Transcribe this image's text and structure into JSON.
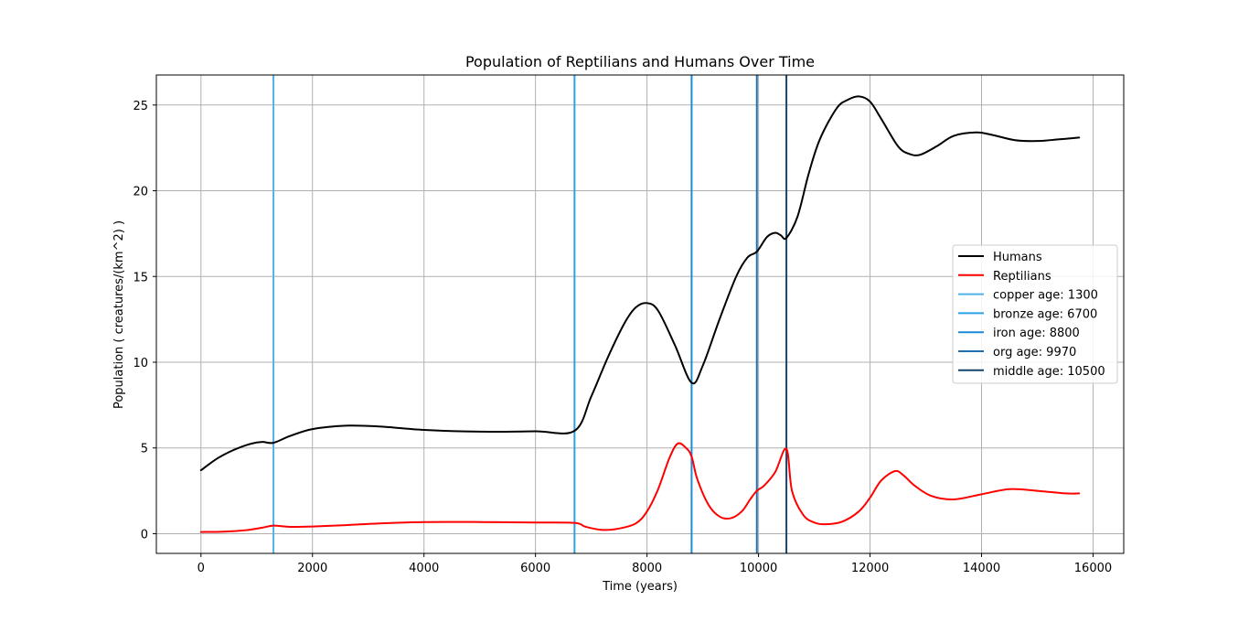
{
  "chart_data": {
    "type": "line",
    "title": "Population of Reptilians and Humans Over Time",
    "xlabel": "Time (years)",
    "ylabel": "Population ( creatures/(km^2) )",
    "xlim": [
      -800,
      16550
    ],
    "ylim": [
      -1.15,
      26.75
    ],
    "xticks": [
      0,
      2000,
      4000,
      6000,
      8000,
      10000,
      12000,
      14000,
      16000
    ],
    "yticks": [
      0,
      5,
      10,
      15,
      20,
      25
    ],
    "grid": true,
    "legend_position": "center-right",
    "series": [
      {
        "name": "Humans",
        "color": "#000000",
        "x": [
          0,
          300,
          600,
          900,
          1100,
          1300,
          1600,
          2000,
          2600,
          3200,
          4000,
          5000,
          6000,
          6700,
          7000,
          7300,
          7600,
          7800,
          8000,
          8200,
          8500,
          8800,
          9000,
          9300,
          9600,
          9800,
          9970,
          10150,
          10300,
          10400,
          10500,
          10700,
          10900,
          11100,
          11400,
          11600,
          11800,
          12000,
          12200,
          12500,
          12700,
          12900,
          13200,
          13500,
          13900,
          14200,
          14600,
          15000,
          15400,
          15750
        ],
        "y": [
          3.7,
          4.4,
          4.9,
          5.25,
          5.35,
          5.3,
          5.7,
          6.1,
          6.3,
          6.25,
          6.05,
          5.95,
          5.97,
          6.0,
          8.0,
          10.3,
          12.3,
          13.2,
          13.45,
          13.0,
          11.0,
          8.8,
          9.8,
          12.5,
          15.0,
          16.1,
          16.45,
          17.3,
          17.55,
          17.4,
          17.25,
          18.5,
          21.0,
          23.0,
          24.8,
          25.3,
          25.5,
          25.2,
          24.2,
          22.6,
          22.15,
          22.1,
          22.6,
          23.2,
          23.4,
          23.25,
          22.95,
          22.9,
          23.0,
          23.1
        ]
      },
      {
        "name": "Reptilians",
        "color": "#ff0000",
        "x": [
          0,
          400,
          800,
          1100,
          1300,
          1600,
          2000,
          2600,
          3200,
          4000,
          5000,
          6000,
          6700,
          6900,
          7200,
          7500,
          7800,
          8000,
          8200,
          8400,
          8550,
          8700,
          8800,
          8900,
          9100,
          9300,
          9500,
          9700,
          9850,
          9970,
          10100,
          10300,
          10500,
          10600,
          10800,
          11000,
          11200,
          11500,
          11800,
          12000,
          12200,
          12450,
          12600,
          12800,
          13100,
          13500,
          14000,
          14500,
          15000,
          15500,
          15750
        ],
        "y": [
          0.1,
          0.12,
          0.2,
          0.35,
          0.47,
          0.4,
          0.42,
          0.5,
          0.6,
          0.68,
          0.68,
          0.65,
          0.63,
          0.4,
          0.22,
          0.3,
          0.6,
          1.3,
          2.6,
          4.4,
          5.25,
          5.0,
          4.5,
          3.2,
          1.7,
          1.0,
          0.9,
          1.3,
          2.0,
          2.5,
          2.8,
          3.6,
          4.95,
          2.5,
          1.1,
          0.65,
          0.55,
          0.7,
          1.3,
          2.1,
          3.1,
          3.65,
          3.4,
          2.8,
          2.2,
          2.0,
          2.3,
          2.6,
          2.5,
          2.35,
          2.35
        ]
      }
    ],
    "vlines": [
      {
        "label": "copper age: 1300",
        "x": 1300,
        "color": "#4fb3e8"
      },
      {
        "label": "bronze age: 6700",
        "x": 6700,
        "color": "#2ca2e6"
      },
      {
        "label": "iron age: 8800",
        "x": 8800,
        "color": "#1f8bd8"
      },
      {
        "label": "org age: 9970",
        "x": 9970,
        "color": "#1f6fae"
      },
      {
        "label": "middle age: 10500",
        "x": 10500,
        "color": "#14476e"
      }
    ]
  }
}
